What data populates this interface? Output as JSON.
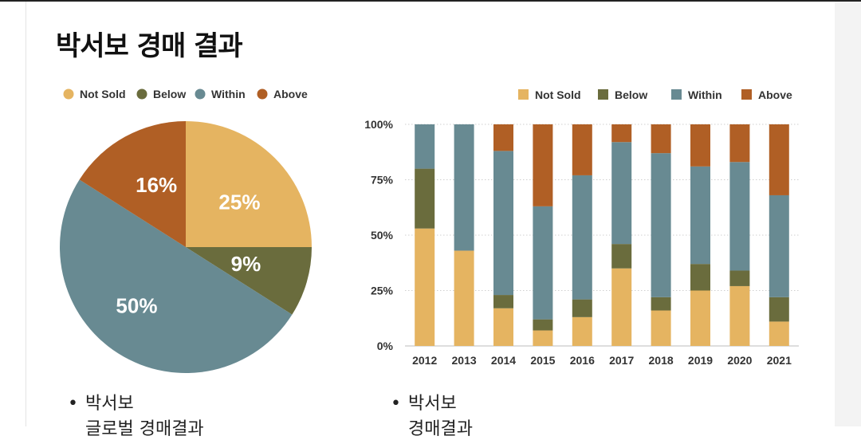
{
  "page": {
    "title": "박서보 경매 결과"
  },
  "notes": {
    "left": {
      "bullet": "박서보",
      "sub": "글로벌 경매결과"
    },
    "right": {
      "bullet": "박서보",
      "sub": "경매결과"
    }
  },
  "colors": {
    "Not Sold": "#E5B461",
    "Below": "#6A6C3D",
    "Within": "#688A92",
    "Above": "#B05F25"
  },
  "chart_data": [
    {
      "type": "pie",
      "legend": [
        "Not Sold",
        "Below",
        "Within",
        "Above"
      ],
      "legend_position": "top",
      "slices": [
        {
          "label": "Not Sold",
          "value": 25,
          "text": "25%"
        },
        {
          "label": "Below",
          "value": 9,
          "text": "9%"
        },
        {
          "label": "Within",
          "value": 50,
          "text": "50%"
        },
        {
          "label": "Above",
          "value": 16,
          "text": "16%"
        }
      ]
    },
    {
      "type": "bar",
      "stacked": true,
      "legend": [
        "Not Sold",
        "Below",
        "Within",
        "Above"
      ],
      "legend_position": "top-right",
      "categories": [
        "2012",
        "2013",
        "2014",
        "2015",
        "2016",
        "2017",
        "2018",
        "2019",
        "2020",
        "2021"
      ],
      "series": [
        {
          "name": "Not Sold",
          "values": [
            53,
            43,
            17,
            7,
            13,
            35,
            16,
            25,
            27,
            11
          ]
        },
        {
          "name": "Below",
          "values": [
            27,
            0,
            6,
            5,
            8,
            11,
            6,
            12,
            7,
            11
          ]
        },
        {
          "name": "Within",
          "values": [
            20,
            57,
            65,
            51,
            56,
            46,
            65,
            44,
            49,
            46
          ]
        },
        {
          "name": "Above",
          "values": [
            0,
            0,
            12,
            37,
            23,
            8,
            13,
            19,
            17,
            32
          ]
        }
      ],
      "yticks": [
        "0%",
        "25%",
        "50%",
        "75%",
        "100%"
      ],
      "ylim": [
        0,
        100
      ],
      "grid": true
    }
  ]
}
